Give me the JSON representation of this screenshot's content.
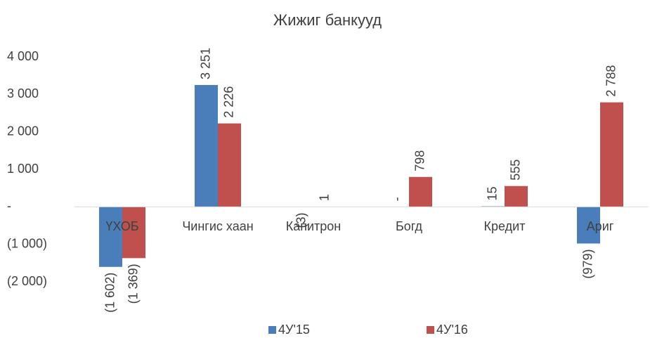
{
  "chart_data": {
    "type": "bar",
    "title": "Жижиг банкууд",
    "categories": [
      "ҮХОБ",
      "Чингис хаан",
      "Капитрон",
      "Богд",
      "Кредит",
      "Ариг"
    ],
    "series": [
      {
        "name": "4У'15",
        "color": "#4a7ebb",
        "values": [
          -1602,
          3251,
          -3,
          0,
          15,
          -979
        ],
        "value_labels": [
          "(1 602)",
          "3 251",
          "(3)",
          "-",
          "15",
          "(979)"
        ]
      },
      {
        "name": "4У'16",
        "color": "#c0504d",
        "values": [
          -1369,
          2226,
          1,
          798,
          555,
          2788
        ],
        "value_labels": [
          "(1 369)",
          "2 226",
          "1",
          "798",
          "555",
          "2 788"
        ]
      }
    ],
    "ylim": [
      -2000,
      4000
    ],
    "yticks": [
      {
        "value": -2000,
        "label": "(2 000)"
      },
      {
        "value": -1000,
        "label": "(1 000)"
      },
      {
        "value": 0,
        "label": "-"
      },
      {
        "value": 1000,
        "label": "1 000"
      },
      {
        "value": 2000,
        "label": "2 000"
      },
      {
        "value": 3000,
        "label": "3 000"
      },
      {
        "value": 4000,
        "label": "4 000"
      }
    ],
    "legend": "bottom"
  }
}
